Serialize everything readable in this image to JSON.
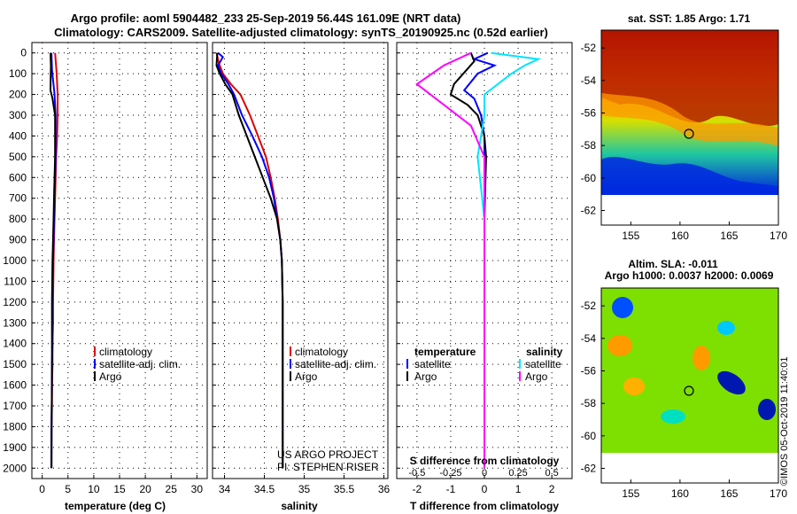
{
  "title_line1": "Argo profile: aoml 5904482_233 25-Sep-2019 56.44S 161.09E (NRT data)",
  "title_line2": "Climatology: CARS2009. Satellite-adjusted climatology: synTS_20190925.nc (0.52d earlier)",
  "colors": {
    "climatology": "#e00000",
    "satellite_adj": "#0000ff",
    "argo": "#000000",
    "salinity_satellite": "#00e5ff",
    "salinity_argo": "#ff00ff"
  },
  "depth_axis": {
    "ticks": [
      0,
      100,
      200,
      300,
      400,
      500,
      600,
      700,
      800,
      900,
      1000,
      1100,
      1200,
      1300,
      1400,
      1500,
      1600,
      1700,
      1800,
      1900,
      2000
    ],
    "range": [
      2050,
      -50
    ]
  },
  "panels": {
    "temperature": {
      "xlabel": "temperature (deg C)",
      "xticks": [
        0,
        5,
        10,
        15,
        20,
        25,
        30
      ],
      "legend": [
        "climatology",
        "satellite-adj. clim.",
        "Argo"
      ]
    },
    "salinity": {
      "xlabel": "salinity",
      "xticks": [
        "34",
        "34.5",
        "35",
        "35.5",
        "36"
      ],
      "legend": [
        "climatology",
        "satellite-adj. clim.",
        "Argo"
      ],
      "credit1": "US ARGO PROJECT",
      "credit2": "PI: STEPHEN RISER"
    },
    "difference": {
      "xlabel": "T difference from climatology",
      "xticks": [
        "-2",
        "-1",
        "0",
        "1",
        "2"
      ],
      "top_label": "S difference from climatology",
      "top_ticks": [
        "-0.5",
        "-0.25",
        "0",
        "0.25",
        "0.5"
      ],
      "legend_left_title": "temperature",
      "legend_left": [
        "satellite",
        "Argo"
      ],
      "legend_right_title": "salinity",
      "legend_right": [
        "satellite",
        "Argo"
      ]
    }
  },
  "maps": {
    "sst_title": "sat. SST: 1.85 Argo: 1.71",
    "sla_title1": "Altim. SLA: -0.011",
    "sla_title2": "Argo h1000: 0.0037 h2000: 0.0069",
    "lon_ticks": [
      "155",
      "160",
      "165",
      "170"
    ],
    "lat_ticks": [
      "-52",
      "-54",
      "-56",
      "-58",
      "-60",
      "-62"
    ],
    "float_lat": -56.44,
    "float_lon": 161.09
  },
  "watermark": "©IMOS 05-Oct-2019 11:40:01",
  "chart_data": [
    {
      "type": "line",
      "title": "",
      "xlabel": "temperature (deg C)",
      "ylabel": "",
      "xlim": [
        -2,
        32
      ],
      "ylim": [
        2050,
        -50
      ],
      "series": [
        {
          "name": "climatology",
          "x": [
            2.5,
            2.8,
            3.0,
            3.0,
            2.9,
            2.7,
            2.6,
            2.5,
            2.4,
            2.3,
            2.2,
            2.1,
            2.1,
            2.0,
            2.0,
            1.9,
            1.9,
            1.8,
            1.8
          ],
          "y": [
            0,
            100,
            200,
            300,
            400,
            500,
            600,
            700,
            800,
            900,
            1000,
            1200,
            1300,
            1400,
            1500,
            1600,
            1700,
            1800,
            2000
          ]
        },
        {
          "name": "satellite-adj. clim.",
          "x": [
            1.8,
            1.9,
            2.4,
            2.6,
            2.6,
            2.6,
            2.5,
            2.4,
            2.3,
            2.2,
            2.1,
            2.0,
            2.0,
            1.9,
            1.9,
            1.8,
            1.8
          ],
          "y": [
            0,
            80,
            200,
            300,
            400,
            500,
            600,
            700,
            800,
            900,
            1000,
            1200,
            1400,
            1500,
            1600,
            1800,
            2000
          ]
        },
        {
          "name": "Argo",
          "x": [
            1.6,
            1.7,
            1.6,
            2.0,
            2.5,
            2.5,
            2.5,
            2.4,
            2.3,
            2.2,
            2.1,
            2.0,
            1.9,
            1.9,
            1.8
          ],
          "y": [
            0,
            60,
            180,
            220,
            300,
            400,
            500,
            600,
            700,
            800,
            900,
            1000,
            1200,
            1500,
            2000
          ]
        }
      ]
    },
    {
      "type": "line",
      "title": "",
      "xlabel": "salinity",
      "ylabel": "",
      "xlim": [
        33.85,
        36.05
      ],
      "ylim": [
        2050,
        -50
      ],
      "series": [
        {
          "name": "climatology",
          "x": [
            33.9,
            33.93,
            33.98,
            34.08,
            34.2,
            34.32,
            34.42,
            34.52,
            34.58,
            34.63,
            34.67,
            34.7,
            34.72,
            34.73,
            34.73,
            34.73
          ],
          "y": [
            0,
            50,
            100,
            150,
            200,
            300,
            400,
            500,
            600,
            700,
            800,
            900,
            1000,
            1200,
            1500,
            2000
          ]
        },
        {
          "name": "satellite-adj. clim.",
          "x": [
            33.92,
            33.98,
            33.92,
            33.96,
            34.05,
            34.12,
            34.22,
            34.35,
            34.47,
            34.56,
            34.62,
            34.66,
            34.7,
            34.72,
            34.73,
            34.73
          ],
          "y": [
            0,
            20,
            60,
            100,
            150,
            200,
            300,
            400,
            500,
            600,
            700,
            800,
            900,
            1000,
            1200,
            2000
          ]
        },
        {
          "name": "Argo",
          "x": [
            33.91,
            33.9,
            33.94,
            34.01,
            34.1,
            34.18,
            34.28,
            34.38,
            34.48,
            34.58,
            34.66,
            34.7,
            34.72,
            34.73,
            34.73
          ],
          "y": [
            0,
            60,
            100,
            150,
            200,
            300,
            400,
            500,
            600,
            700,
            800,
            900,
            1000,
            1200,
            2000
          ]
        }
      ]
    },
    {
      "type": "line",
      "title": "",
      "xlabel": "T difference from climatology",
      "ylabel": "",
      "xlim": [
        -2.6,
        2.6
      ],
      "ylim": [
        2050,
        -50
      ],
      "series": [
        {
          "name": "temperature satellite",
          "x": [
            0.1,
            -0.3,
            0.3,
            -0.2,
            -0.6,
            -0.3,
            -0.1,
            0.0,
            0.0,
            0.0,
            0.0,
            0.0,
            0.0
          ],
          "y": [
            0,
            30,
            60,
            100,
            180,
            220,
            300,
            400,
            600,
            800,
            1200,
            1600,
            2000
          ]
        },
        {
          "name": "temperature Argo",
          "x": [
            -0.4,
            -0.3,
            -0.9,
            -1.0,
            -0.5,
            -0.2,
            0.0,
            0.05,
            0.0,
            0.0,
            0.0
          ],
          "y": [
            0,
            40,
            150,
            200,
            250,
            300,
            400,
            500,
            800,
            1200,
            2000
          ]
        },
        {
          "name": "salinity satellite",
          "x": [
            0.05,
            0.4,
            0.3,
            0.2,
            0.0,
            0.0,
            -0.05,
            0.0,
            0.0,
            0.0,
            0.0
          ],
          "y": [
            0,
            30,
            60,
            100,
            200,
            300,
            500,
            800,
            1200,
            1600,
            2000
          ]
        },
        {
          "name": "salinity Argo",
          "x": [
            -0.1,
            -0.3,
            -0.5,
            -0.3,
            -0.1,
            0.0,
            0.0,
            0.0
          ],
          "y": [
            0,
            60,
            150,
            250,
            350,
            500,
            1000,
            2000
          ]
        }
      ]
    }
  ]
}
